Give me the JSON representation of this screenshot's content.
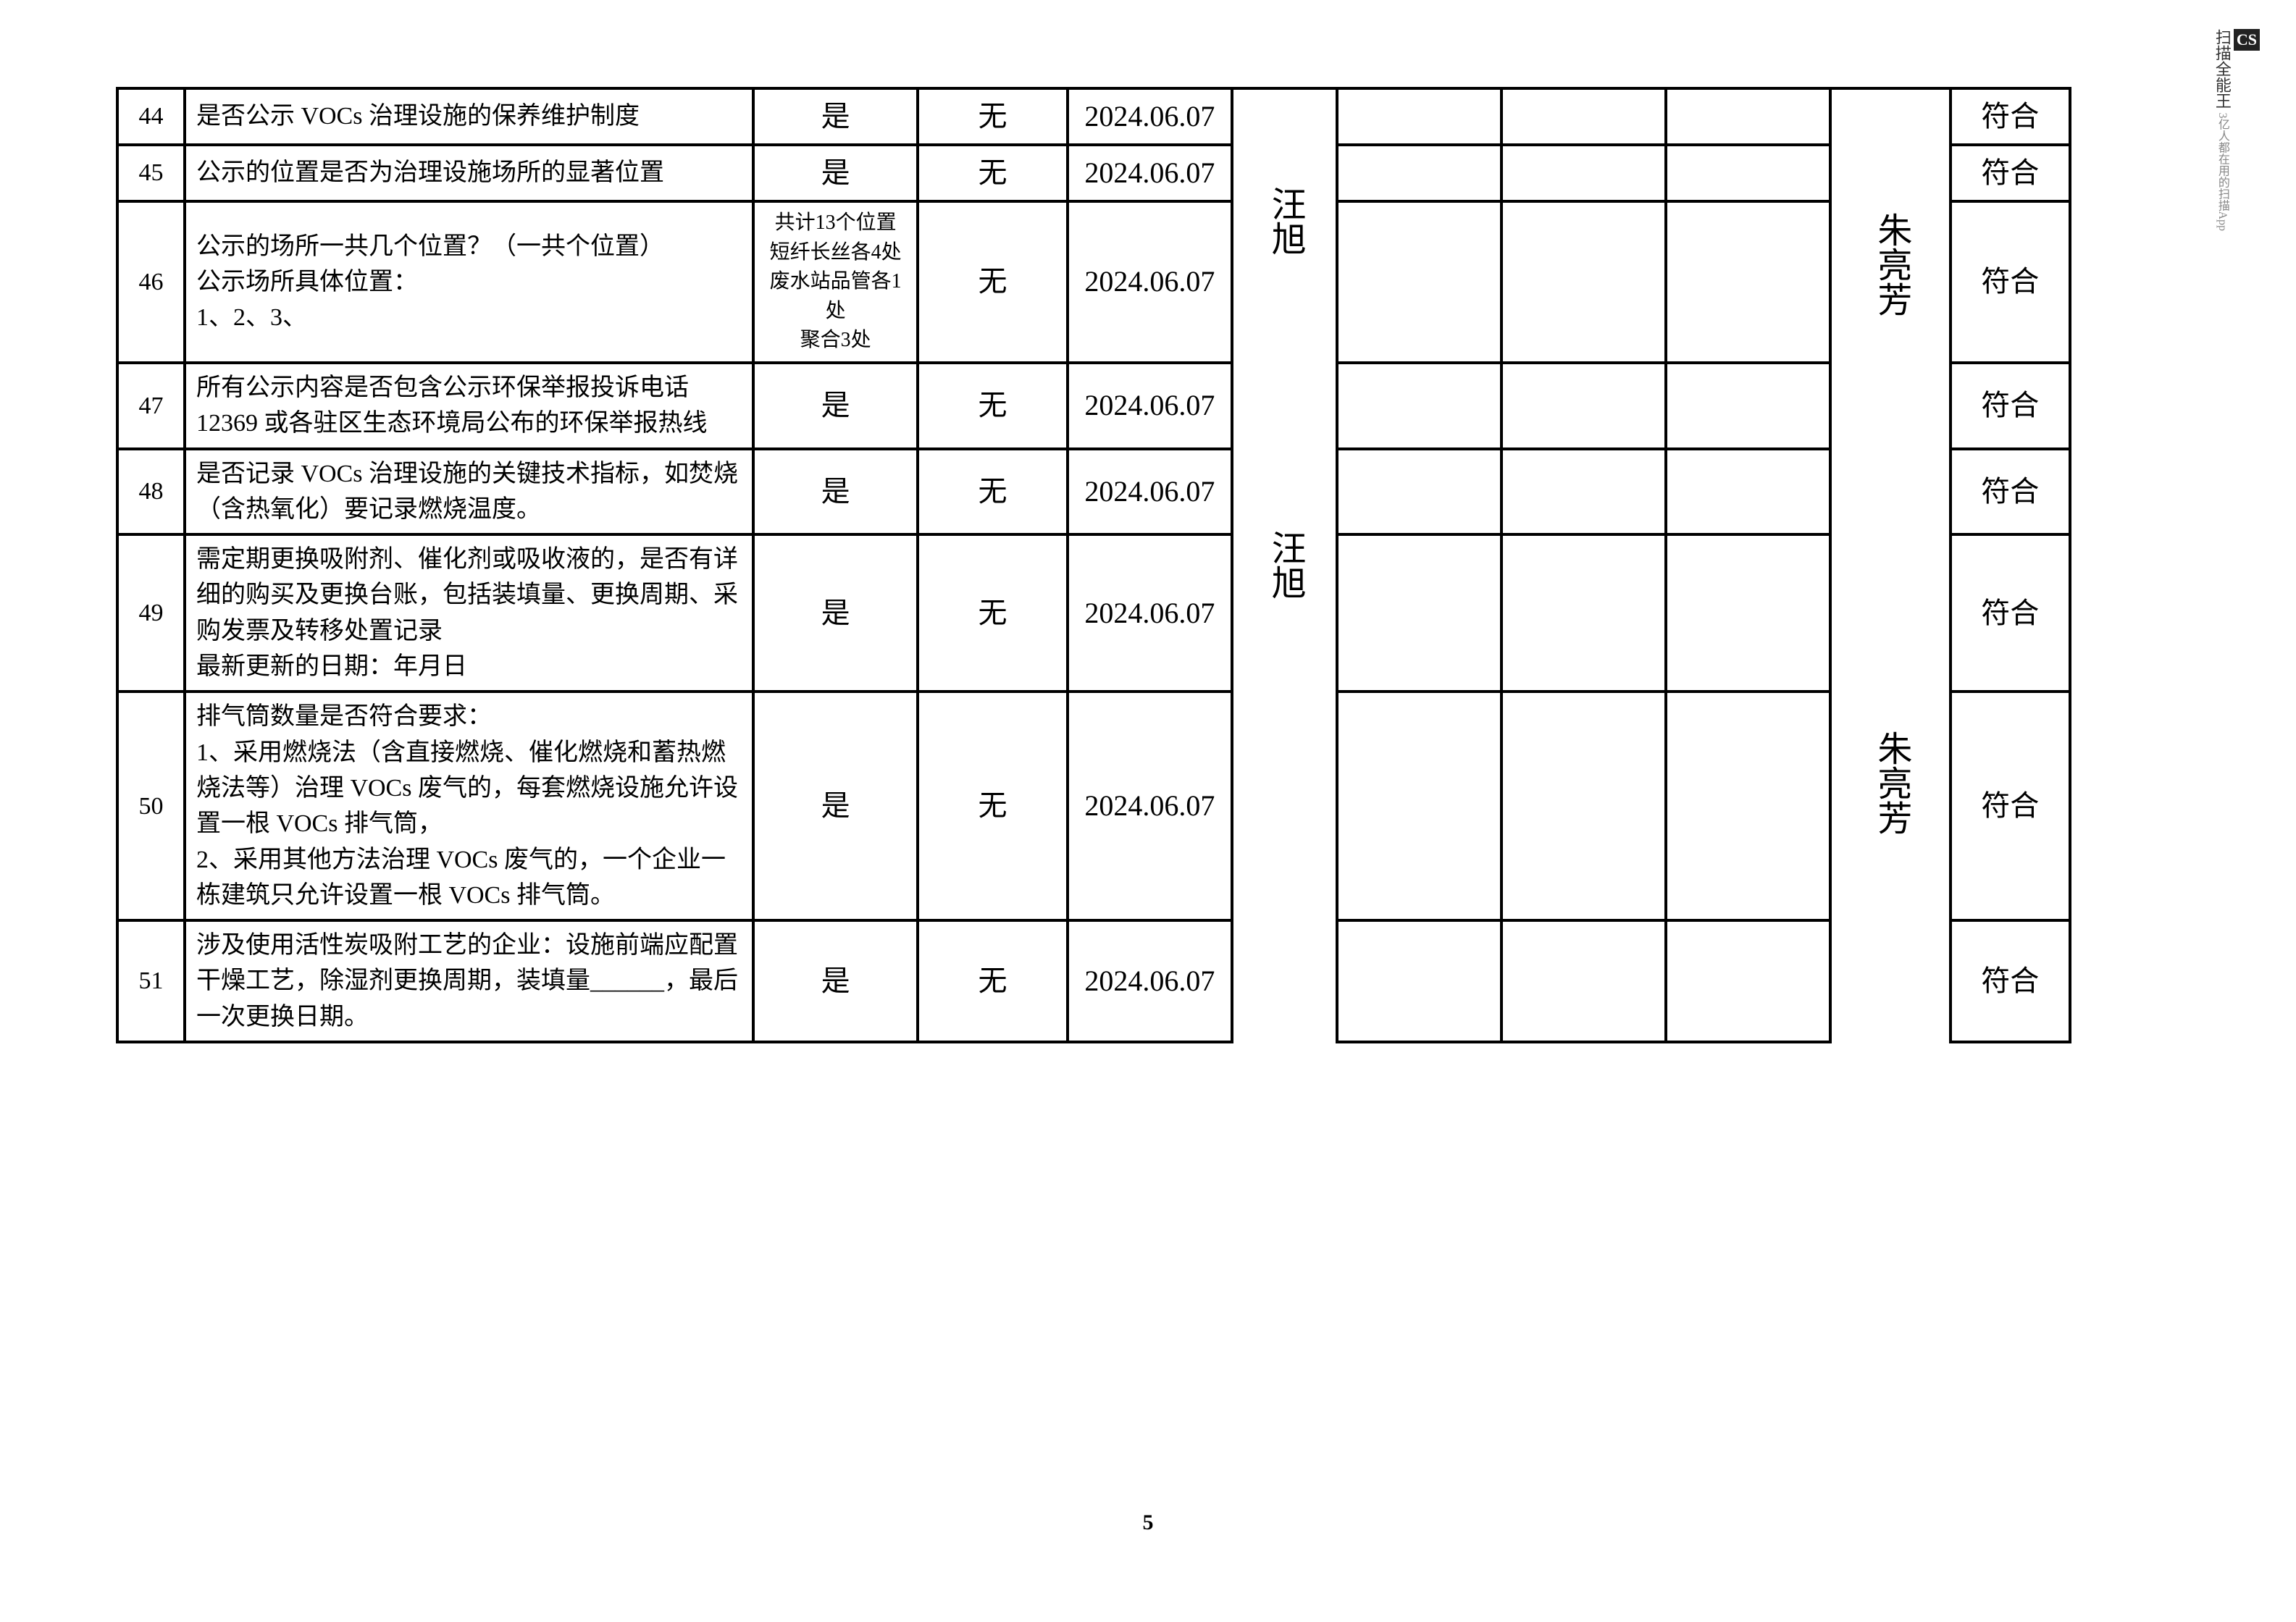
{
  "page_number": "5",
  "watermark": {
    "brand": "CS",
    "title": "扫描全能王",
    "sub": "3亿人都在用的扫描App"
  },
  "signature1": "朱亮芳",
  "signature_name": "汪旭",
  "rows": [
    {
      "num": "44",
      "question": "是否公示 VOCs 治理设施的保养维护制度",
      "c1": "是",
      "c2": "无",
      "c3": "2024.06.07",
      "c9": "符合"
    },
    {
      "num": "45",
      "question": "公示的位置是否为治理设施场所的显著位置",
      "c1": "是",
      "c2": "无",
      "c3": "2024.06.07",
      "c9": "符合"
    },
    {
      "num": "46",
      "question": "公示的场所一共几个位置？（一共个位置）\n公示场所具体位置：\n1、2、3、",
      "c1": "共计13个位置\n短纤长丝各4处\n废水站品管各1处\n聚合3处",
      "c2": "无",
      "c3": "2024.06.07",
      "c9": "符合"
    },
    {
      "num": "47",
      "question": "所有公示内容是否包含公示环保举报投诉电话 12369 或各驻区生态环境局公布的环保举报热线",
      "c1": "是",
      "c2": "无",
      "c3": "2024.06.07",
      "c9": "符合"
    },
    {
      "num": "48",
      "question": "是否记录 VOCs 治理设施的关键技术指标，如焚烧（含热氧化）要记录燃烧温度。",
      "c1": "是",
      "c2": "无",
      "c3": "2024.06.07",
      "c9": "符合"
    },
    {
      "num": "49",
      "question": "需定期更换吸附剂、催化剂或吸收液的，是否有详细的购买及更换台账，包括装填量、更换周期、采购发票及转移处置记录\n最新更新的日期：年月日",
      "c1": "是",
      "c2": "无",
      "c3": "2024.06.07",
      "c9": "符合"
    },
    {
      "num": "50",
      "question": "排气筒数量是否符合要求：\n1、采用燃烧法（含直接燃烧、催化燃烧和蓄热燃烧法等）治理 VOCs 废气的，每套燃烧设施允许设置一根 VOCs 排气筒，\n2、采用其他方法治理 VOCs 废气的，一个企业一栋建筑只允许设置一根 VOCs 排气筒。",
      "c1": "是",
      "c2": "无",
      "c3": "2024.06.07",
      "c9": "符合"
    },
    {
      "num": "51",
      "question": "涉及使用活性炭吸附工艺的企业：设施前端应配置干燥工艺，除湿剂更换周期，装填量______，最后一次更换日期。",
      "c1": "是",
      "c2": "无",
      "c3": "2024.06.07",
      "c9": "符合"
    }
  ]
}
